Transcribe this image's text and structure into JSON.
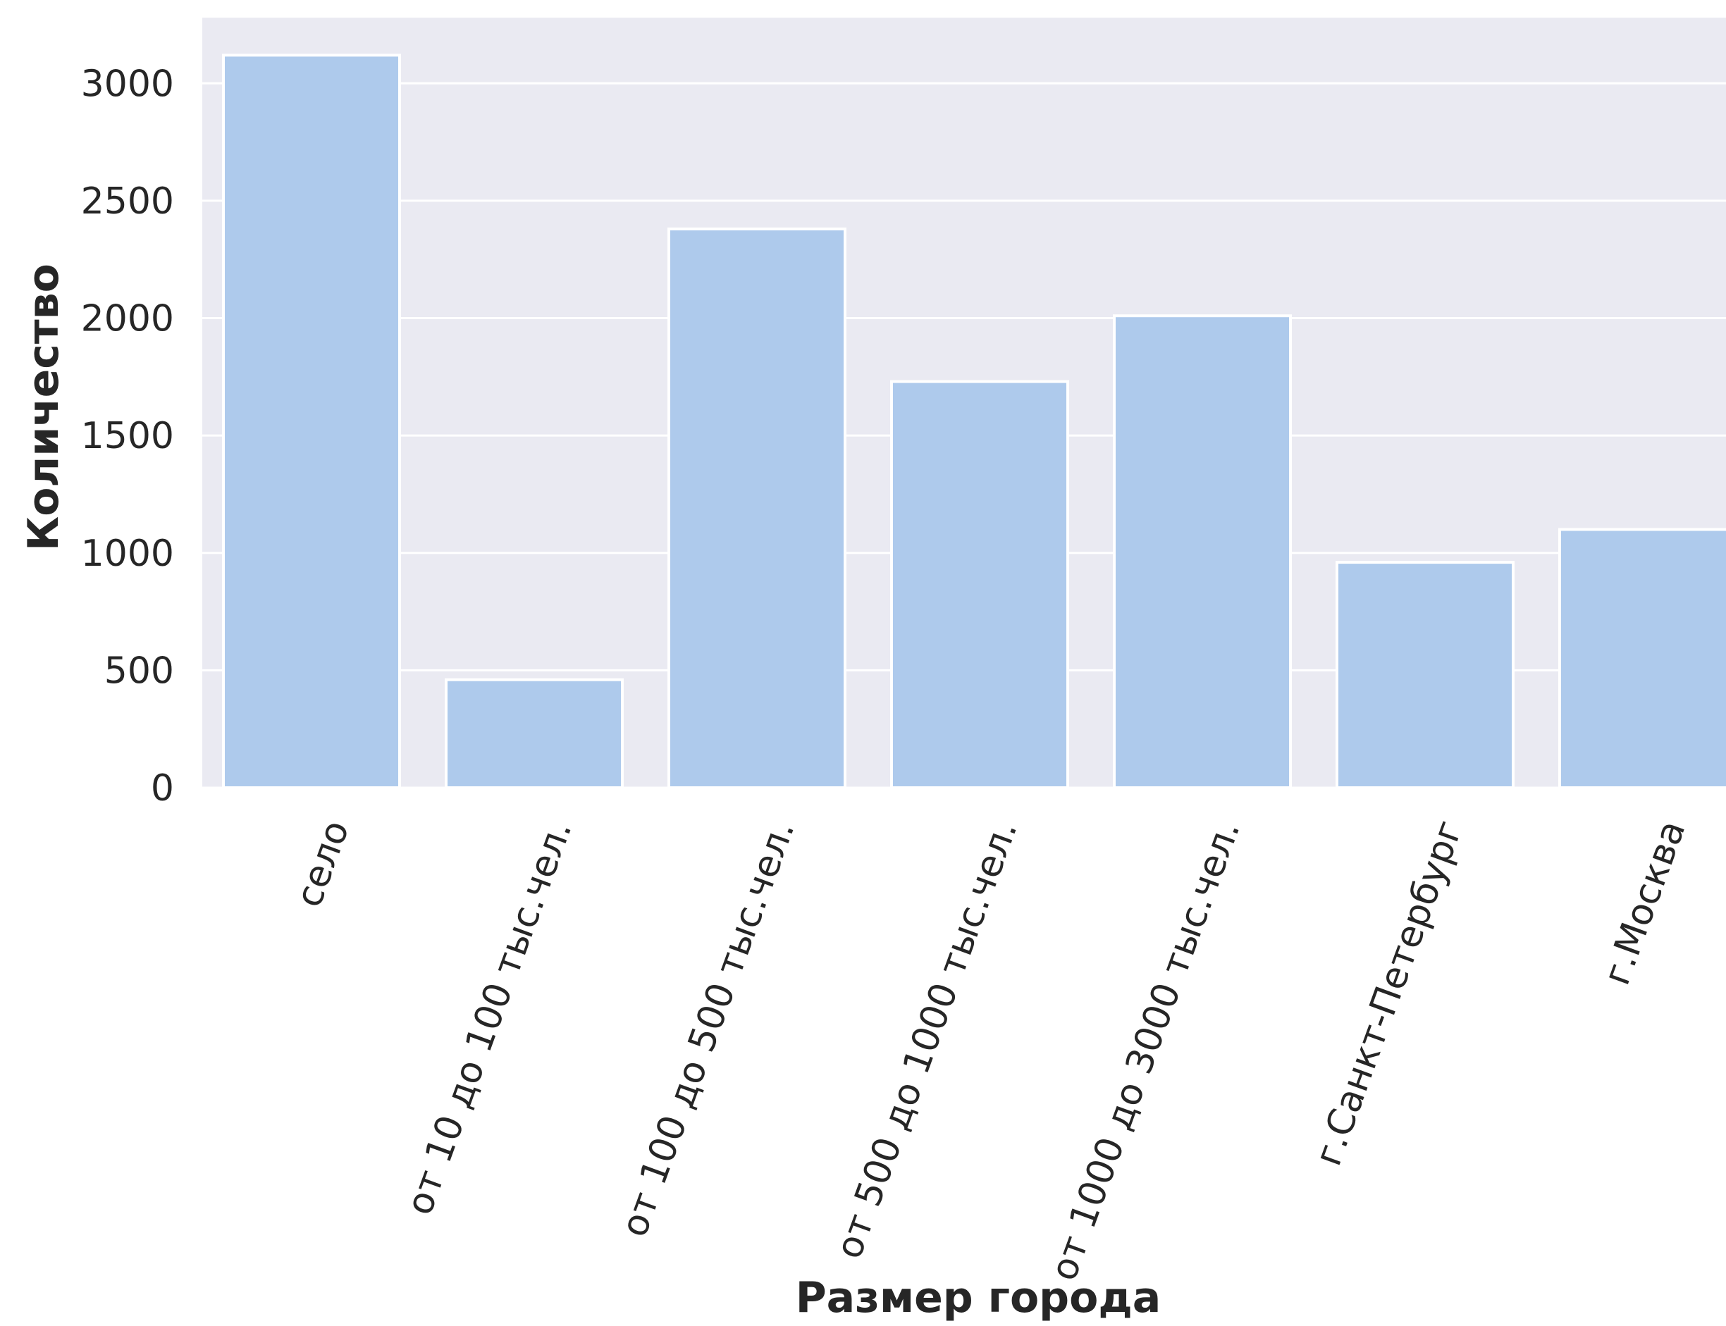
{
  "chart_data": {
    "type": "bar",
    "title": "",
    "xlabel": "Размер города",
    "ylabel": "Количество",
    "categories": [
      "село",
      "от 10 до 100 тыс.чел.",
      "от 100 до 500 тыс.чел.",
      "от 500 до 1000 тыс.чел.",
      "от 1000 до 3000 тыс.чел.",
      "г.Санкт-Петербург",
      "г.Москва"
    ],
    "values": [
      3120,
      460,
      2380,
      1730,
      2010,
      960,
      1100
    ],
    "yticks": [
      "0",
      "500",
      "1000",
      "1500",
      "2000",
      "2500",
      "3000"
    ],
    "ylim": [
      0,
      3280
    ],
    "grid": true,
    "legend": "none",
    "colors": {
      "background": "#eaeaf2",
      "bar": "#aecaec",
      "grid": "#ffffff",
      "text": "#262626"
    }
  }
}
